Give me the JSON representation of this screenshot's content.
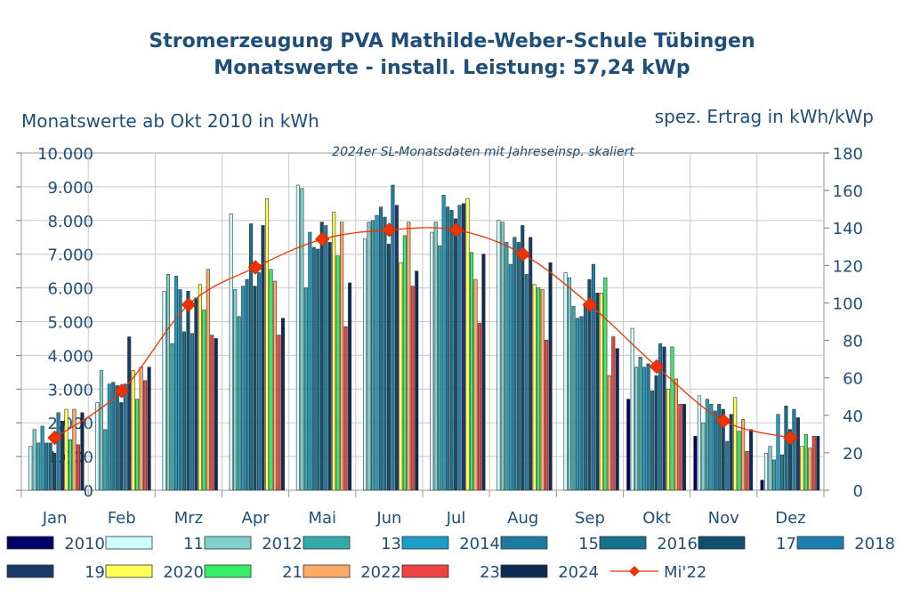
{
  "header": {
    "title": "Stromerzeugung PVA Mathilde-Weber-Schule Tübingen",
    "subtitle": "Monatswerte - install. Leistung: 57,24 kWp"
  },
  "axes": {
    "left_caption": "Monatswerte ab Okt 2010 in kWh",
    "right_caption": "spez. Ertrag in kWh/kWp"
  },
  "chart_data": {
    "type": "bar",
    "title": "Stromerzeugung PVA Mathilde-Weber-Schule Tübingen",
    "subtitle": "Monatswerte - install. Leistung: 57,24 kWp",
    "annotation": "2024er SL-Monatsdaten mit Jahreseinsp. skaliert",
    "categories": [
      "Jan",
      "Feb",
      "Mrz",
      "Apr",
      "Mai",
      "Jun",
      "Jul",
      "Aug",
      "Sep",
      "Okt",
      "Nov",
      "Dez"
    ],
    "ylabel": "Monatswerte ab Okt 2010 in kWh",
    "y2label": "spez. Ertrag in kWh/kWp",
    "ylim": [
      0,
      10000
    ],
    "y2lim": [
      0,
      180
    ],
    "yticks": [
      "0",
      "1.000",
      "2.000",
      "3.000",
      "4.000",
      "5.000",
      "6.000",
      "7.000",
      "8.000",
      "9.000",
      "10.000"
    ],
    "y2ticks": [
      "0",
      "20",
      "40",
      "60",
      "80",
      "100",
      "120",
      "140",
      "160",
      "180"
    ],
    "grid": true,
    "series": [
      {
        "name": "2010",
        "color": "#000066",
        "values": [
          null,
          null,
          null,
          null,
          null,
          null,
          null,
          null,
          null,
          2700,
          1600,
          300
        ]
      },
      {
        "name": "11",
        "color": "#ccffff",
        "values": [
          1300,
          2600,
          5900,
          8200,
          9050,
          7450,
          7650,
          8000,
          6450,
          4800,
          2800,
          1100
        ]
      },
      {
        "name": "2012",
        "color": "#7fcfcf",
        "values": [
          1800,
          3550,
          6400,
          5950,
          8950,
          7950,
          7950,
          7950,
          6300,
          3650,
          2000,
          1300
        ]
      },
      {
        "name": "13",
        "color": "#33aaaa",
        "values": [
          1400,
          1800,
          4350,
          5150,
          6000,
          8000,
          7250,
          7350,
          5450,
          3950,
          2700,
          900
        ]
      },
      {
        "name": "2014",
        "color": "#1b9dc8",
        "values": [
          1900,
          3150,
          6350,
          6050,
          7650,
          8150,
          8750,
          6700,
          5100,
          3650,
          2550,
          2250
        ]
      },
      {
        "name": "15",
        "color": "#1a7aa0",
        "values": [
          1400,
          3200,
          5950,
          6250,
          7200,
          8400,
          8400,
          7500,
          5150,
          3750,
          2350,
          1050
        ]
      },
      {
        "name": "2016",
        "color": "#16728c",
        "values": [
          1400,
          3100,
          4700,
          7900,
          7150,
          8100,
          8300,
          7350,
          5550,
          2950,
          2550,
          2500
        ]
      },
      {
        "name": "17",
        "color": "#0f4f6f",
        "values": [
          1100,
          2600,
          5900,
          6050,
          7950,
          7300,
          8050,
          7850,
          6250,
          3400,
          2400,
          1800
        ]
      },
      {
        "name": "2018",
        "color": "#1d7fb0",
        "values": [
          2300,
          3150,
          4650,
          6450,
          7850,
          9050,
          8450,
          6400,
          6700,
          4350,
          1450,
          2400
        ]
      },
      {
        "name": "19",
        "color": "#1a3a6a",
        "values": [
          2050,
          4550,
          5700,
          7850,
          7350,
          8450,
          8500,
          7500,
          5850,
          4250,
          2250,
          2150
        ]
      },
      {
        "name": "2020",
        "color": "#ffff55",
        "values": [
          2400,
          3550,
          6100,
          8650,
          8250,
          6750,
          8650,
          6100,
          5850,
          3000,
          2750,
          1300
        ]
      },
      {
        "name": "21",
        "color": "#33ee66",
        "values": [
          1500,
          2700,
          5350,
          6550,
          6950,
          7550,
          7050,
          6000,
          6300,
          4250,
          1750,
          1650
        ]
      },
      {
        "name": "2022",
        "color": "#ffaa66",
        "values": [
          2400,
          3650,
          6550,
          6200,
          7950,
          7950,
          6250,
          5950,
          3400,
          3300,
          2100,
          1250
        ]
      },
      {
        "name": "23",
        "color": "#ee4444",
        "values": [
          1350,
          3250,
          4600,
          4600,
          4850,
          6050,
          4950,
          4450,
          4550,
          2550,
          1150,
          1600
        ]
      },
      {
        "name": "2024",
        "color": "#0d2b55",
        "values": [
          2300,
          3650,
          4500,
          5100,
          6150,
          6500,
          7000,
          6750,
          4200,
          2550,
          1800,
          1600
        ]
      }
    ],
    "line_series": {
      "name": "Mi'22",
      "axis": "right",
      "color": "#ee3300",
      "values": [
        28,
        53,
        99,
        119,
        134,
        139,
        139,
        126,
        99,
        66,
        37,
        28
      ]
    }
  },
  "legend": {
    "row1": [
      "2010",
      "11",
      "2012",
      "13",
      "2014",
      "15",
      "2016",
      "17",
      "2018"
    ],
    "row2": [
      "19",
      "2020",
      "21",
      "2022",
      "23",
      "2024",
      "Mi'22"
    ]
  }
}
